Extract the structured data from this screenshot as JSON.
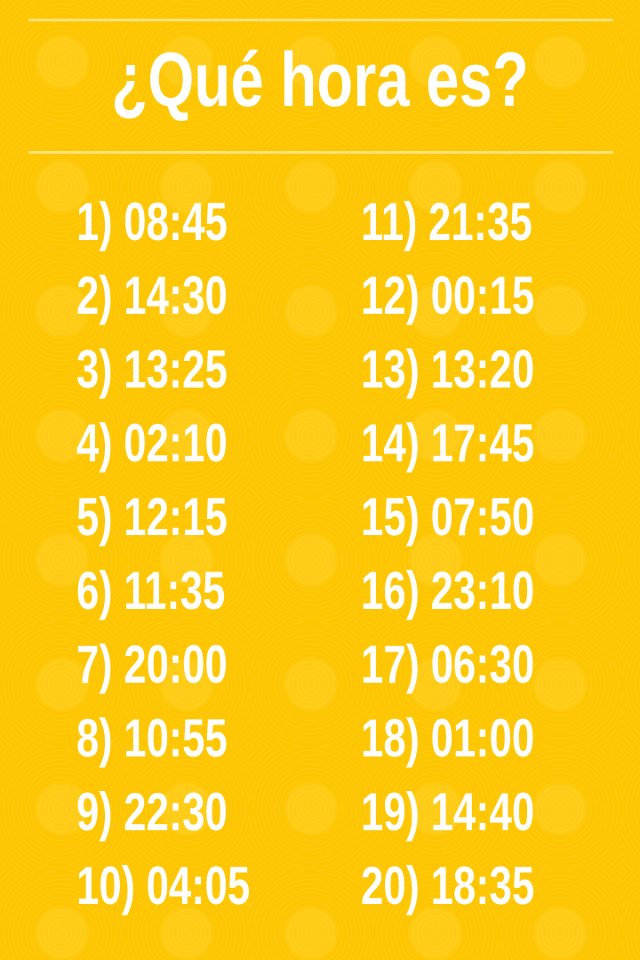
{
  "title": "¿Qué hora es?",
  "colors": {
    "background": "#FDC600",
    "text": "#FFFFFF",
    "rule": "#FFE27A"
  },
  "left": [
    "1) 08:45",
    "2) 14:30",
    "3) 13:25",
    "4) 02:10",
    "5) 12:15",
    "6) 11:35",
    "7) 20:00",
    "8) 10:55",
    "9) 22:30",
    "10) 04:05"
  ],
  "right": [
    "11) 21:35",
    "12) 00:15",
    "13) 13:20",
    "14) 17:45",
    "15) 07:50",
    "16) 23:10",
    "17) 06:30",
    "18) 01:00",
    "19) 14:40",
    "20) 18:35"
  ]
}
